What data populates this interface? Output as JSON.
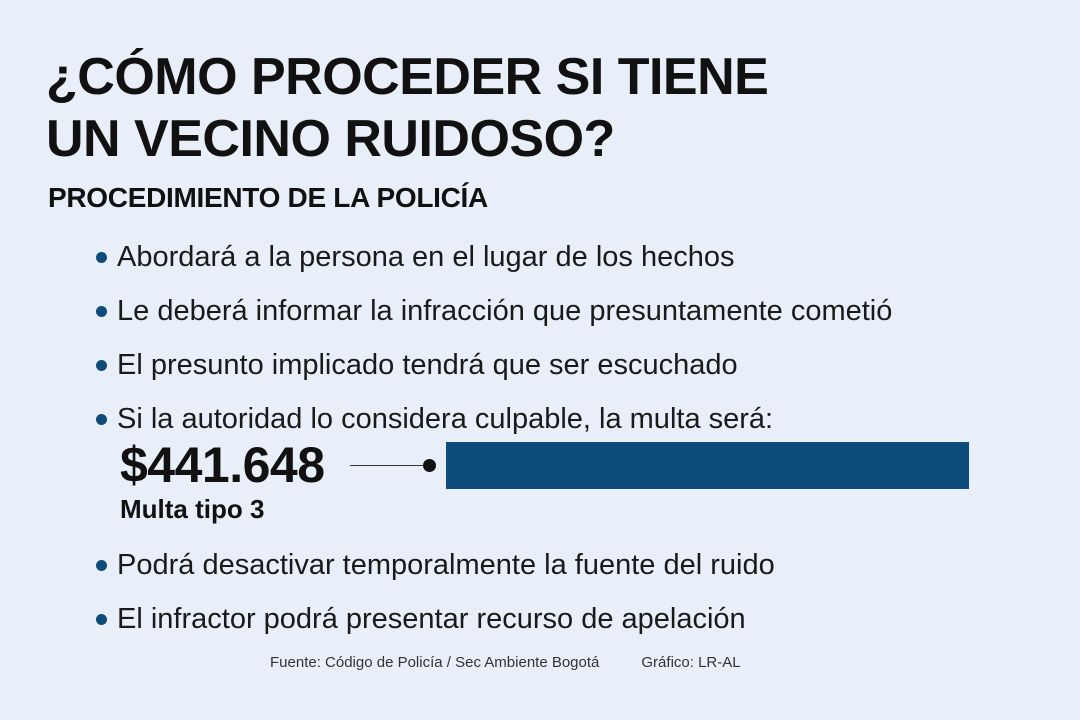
{
  "title": {
    "line1": "¿CÓMO PROCEDER SI TIENE",
    "line2": "UN VECINO RUIDOSO?"
  },
  "subtitle": "PROCEDIMIENTO DE LA POLICÍA",
  "steps": [
    "Abordará a la persona en el lugar de los hechos",
    "Le deberá informar la infracción que presuntamente cometió",
    "El presunto implicado tendrá que ser escuchado",
    "Si la autoridad lo considera culpable, la multa será:"
  ],
  "fine": {
    "amount": "$441.648",
    "type": "Multa tipo 3"
  },
  "steps_after": [
    "Podrá desactivar temporalmente la fuente del ruido",
    "El infractor podrá presentar recurso de apelación"
  ],
  "footer": {
    "source": "Fuente: Código de Policía / Sec Ambiente Bogotá",
    "credit": "Gráfico: LR-AL"
  },
  "colors": {
    "background": "#e8eff8",
    "accent": "#0e4c7c"
  }
}
